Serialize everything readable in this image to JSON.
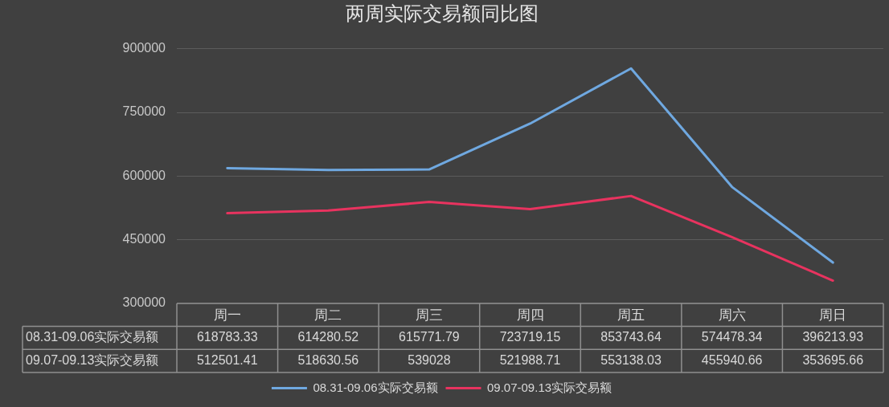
{
  "chart_data": {
    "type": "line",
    "title": "两周实际交易额同比图",
    "categories": [
      "周一",
      "周二",
      "周三",
      "周四",
      "周五",
      "周六",
      "周日"
    ],
    "series": [
      {
        "name": "08.31-09.06实际交易额",
        "color": "#6fa8e0",
        "values": [
          618783.33,
          614280.52,
          615771.79,
          723719.15,
          853743.64,
          574478.34,
          396213.93
        ]
      },
      {
        "name": "09.07-09.13实际交易额",
        "color": "#e8335f",
        "values": [
          512501.41,
          518630.56,
          539028,
          521988.71,
          553138.03,
          455940.66,
          353695.66
        ]
      }
    ],
    "ylim": [
      300000,
      900000
    ],
    "yticks": [
      300000,
      450000,
      600000,
      750000,
      900000
    ],
    "grid": "y",
    "legend": "bottom",
    "marker": "none",
    "line_style": "solid",
    "data_labels": true
  }
}
